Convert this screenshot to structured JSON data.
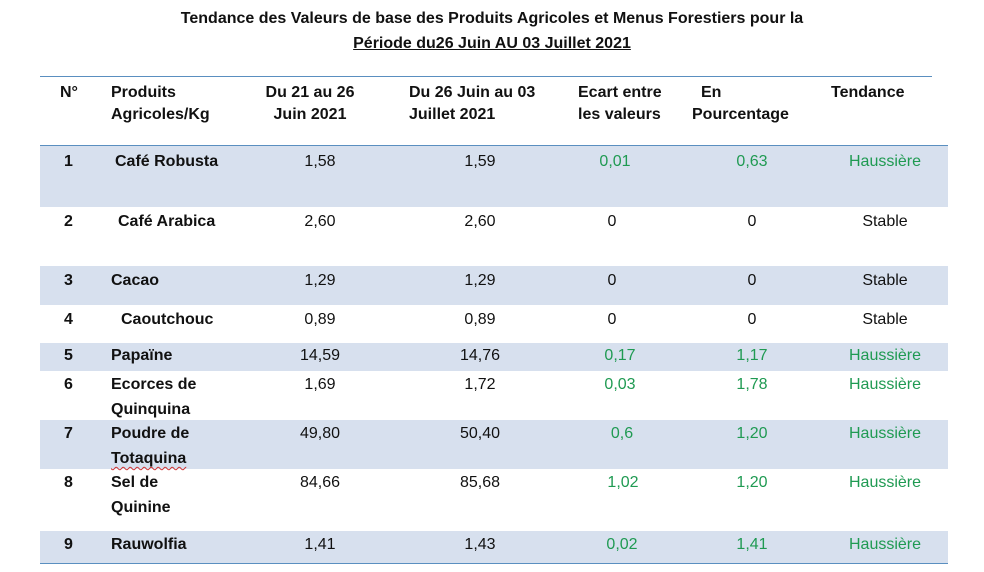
{
  "title": {
    "line1": "Tendance des Valeurs de base des Produits Agricoles et Menus Forestiers pour la",
    "line2": "Période du26 Juin AU 03 Juillet    2021"
  },
  "headers": {
    "num": "N°",
    "product_l1": "Produits",
    "product_l2": "Agricoles/Kg",
    "p1_l1": "Du 21 au 26",
    "p1_l2": "Juin 2021",
    "p2_l1": "Du 26 Juin au 03",
    "p2_l2": "Juillet 2021",
    "diff_l1": "Ecart entre",
    "diff_l2": "les valeurs",
    "pct_l1": "En",
    "pct_l2": "Pourcentage",
    "trend": "Tendance"
  },
  "rows": [
    {
      "n": "1",
      "product_l1": "Café Robusta",
      "product_l2": "",
      "v1": "1,58",
      "v2": "1,59",
      "diff": "0,01",
      "pct": "0,63",
      "trend": "Haussière"
    },
    {
      "n": "2",
      "product_l1": "Café Arabica",
      "product_l2": "",
      "v1": "2,60",
      "v2": "2,60",
      "diff": "0",
      "pct": "0",
      "trend": "Stable"
    },
    {
      "n": "3",
      "product_l1": "Cacao",
      "product_l2": "",
      "v1": "1,29",
      "v2": "1,29",
      "diff": "0",
      "pct": "0",
      "trend": "Stable"
    },
    {
      "n": "4",
      "product_l1": "Caoutchouc",
      "product_l2": "",
      "v1": "0,89",
      "v2": "0,89",
      "diff": "0",
      "pct": "0",
      "trend": "Stable"
    },
    {
      "n": "5",
      "product_l1": "Papaïne",
      "product_l2": "",
      "v1": "14,59",
      "v2": "14,76",
      "diff": "0,17",
      "pct": "1,17",
      "trend": "Haussière"
    },
    {
      "n": "6",
      "product_l1": "Ecorces de",
      "product_l2": "Quinquina",
      "v1": "1,69",
      "v2": "1,72",
      "diff": "0,03",
      "pct": "1,78",
      "trend": "Haussière"
    },
    {
      "n": "7",
      "product_l1": "Poudre de",
      "product_l2": "Totaquina",
      "v1": "49,80",
      "v2": "50,40",
      "diff": "0,6",
      "pct": "1,20",
      "trend": "Haussière"
    },
    {
      "n": "8",
      "product_l1": "Sel de",
      "product_l2": "Quinine",
      "v1": "84,66",
      "v2": "85,68",
      "diff": "1,02",
      "pct": "1,20",
      "trend": "Haussière"
    },
    {
      "n": "9",
      "product_l1": "Rauwolfia",
      "product_l2": "",
      "v1": "1,41",
      "v2": "1,43",
      "diff": "0,02",
      "pct": "1,41",
      "trend": "Haussière"
    }
  ]
}
